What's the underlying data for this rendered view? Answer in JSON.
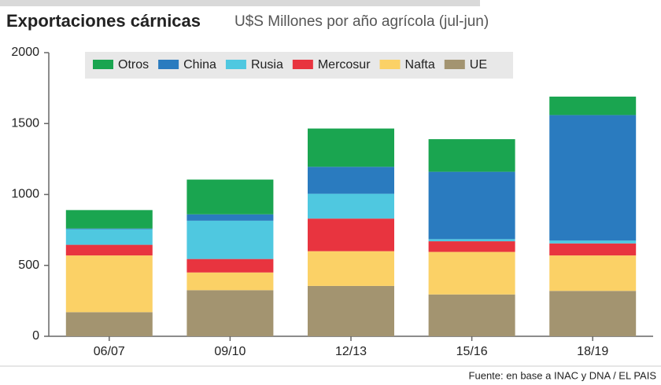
{
  "chart_data": {
    "type": "stacked-bar",
    "title": "Exportaciones cárnicas",
    "subtitle": "U$S Millones por año agrícola (jul-jun)",
    "source": "Fuente: en base a INAC y DNA / EL PAIS",
    "categories": [
      "06/07",
      "09/10",
      "12/13",
      "15/16",
      "18/19"
    ],
    "series": [
      {
        "name": "UE",
        "color": "#a39470",
        "values": [
          170,
          325,
          355,
          295,
          320
        ]
      },
      {
        "name": "Nafta",
        "color": "#fbd166",
        "values": [
          400,
          125,
          245,
          300,
          250
        ]
      },
      {
        "name": "Mercosur",
        "color": "#e8343f",
        "values": [
          75,
          95,
          230,
          75,
          85
        ]
      },
      {
        "name": "Rusia",
        "color": "#4fc8e0",
        "values": [
          110,
          270,
          175,
          15,
          20
        ]
      },
      {
        "name": "China",
        "color": "#2a7bbf",
        "values": [
          5,
          45,
          190,
          475,
          885
        ]
      },
      {
        "name": "Otros",
        "color": "#1aa550",
        "values": [
          130,
          245,
          270,
          230,
          130
        ]
      }
    ],
    "ylim": [
      0,
      2000
    ],
    "yticks": [
      0,
      500,
      1000,
      1500,
      2000
    ]
  }
}
